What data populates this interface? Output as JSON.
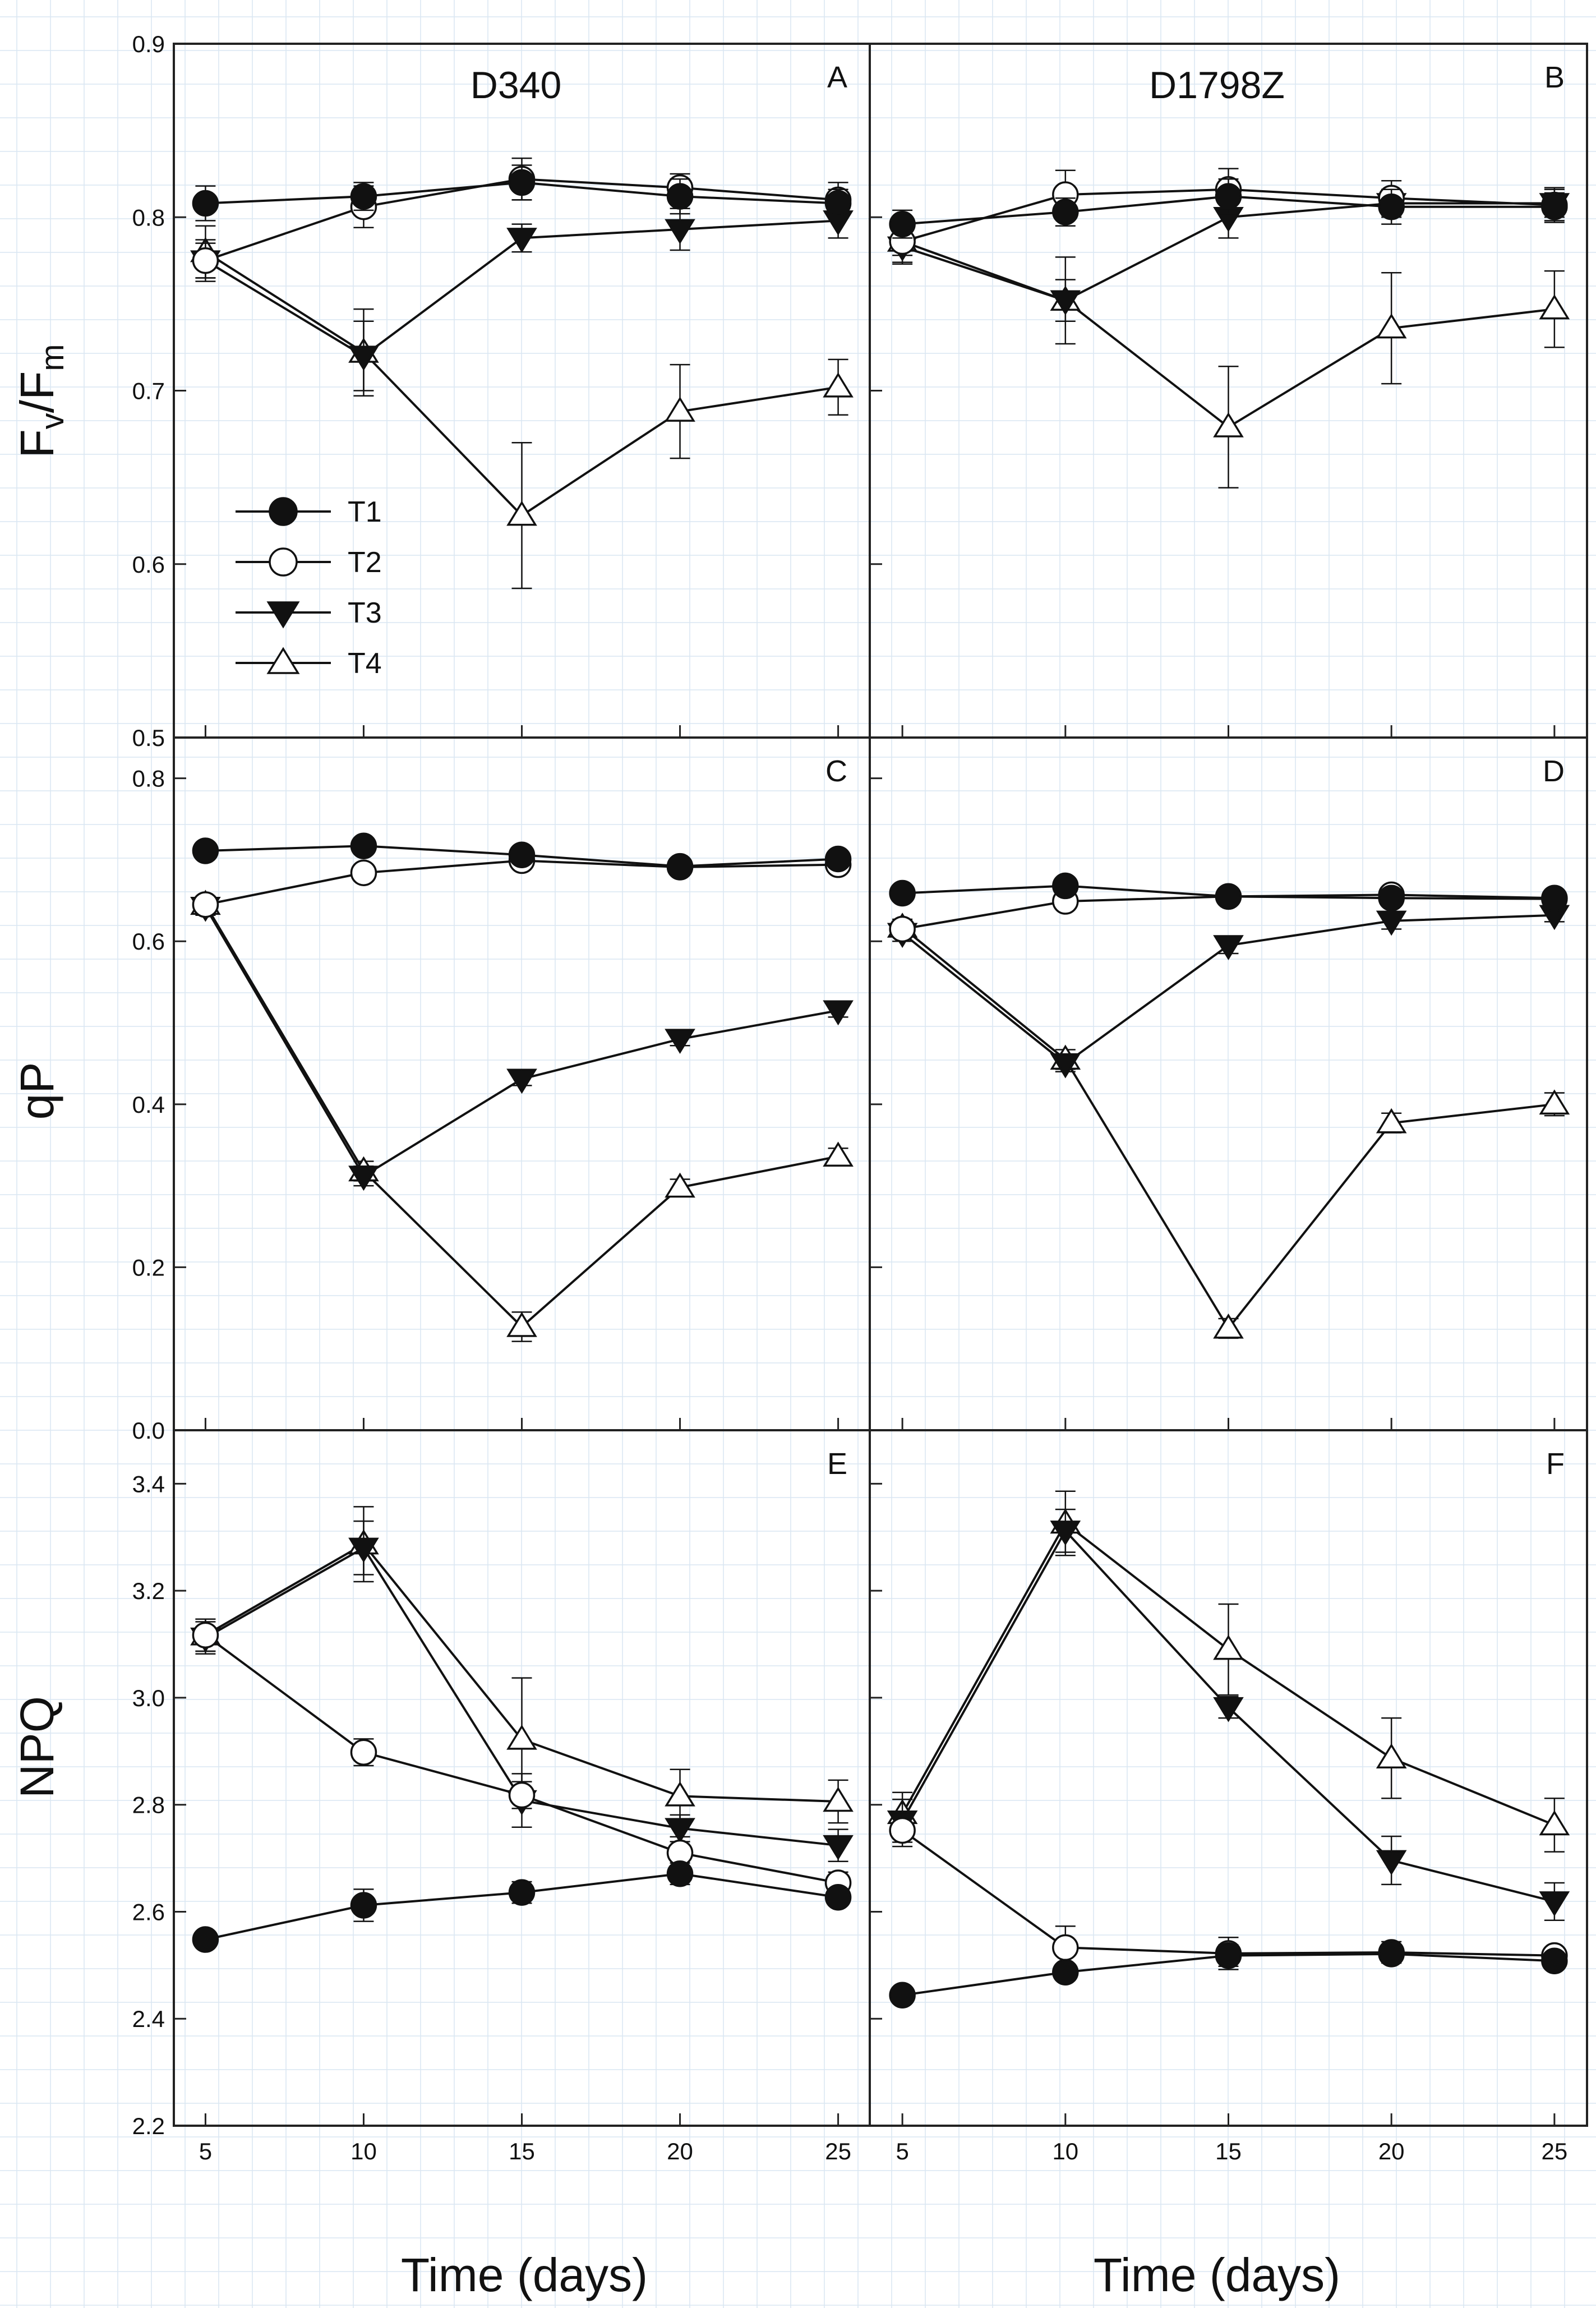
{
  "figure": {
    "xlabel": "Time (days)",
    "ylabels": {
      "fvfm_main": "F",
      "fvfm_sub_v": "v",
      "fvfm_slash": "/F",
      "fvfm_sub_m": "m",
      "qp": "qP",
      "npq": "NPQ"
    },
    "column_titles": [
      "D340",
      "D1798Z"
    ]
  },
  "legend": [
    {
      "name": "T1",
      "marker": "circle",
      "filled": true
    },
    {
      "name": "T2",
      "marker": "circle",
      "filled": false
    },
    {
      "name": "T3",
      "marker": "triangle-down",
      "filled": true
    },
    {
      "name": "T4",
      "marker": "triangle-up",
      "filled": false
    }
  ],
  "colors": {
    "line": "#111111",
    "grid": "#d9e6f2",
    "background": "#ffffff"
  },
  "chart_data": [
    {
      "panel": "A",
      "title": "D340",
      "type": "line",
      "ylabel": "Fv/Fm",
      "x": [
        5,
        10,
        15,
        20,
        25
      ],
      "xlim": [
        4,
        26
      ],
      "ylim": [
        0.5,
        0.9
      ],
      "yticks": [
        "0.5",
        "0.6",
        "0.7",
        "0.8",
        "0.9"
      ],
      "series": [
        {
          "name": "T1",
          "values": [
            0.808,
            0.812,
            0.82,
            0.812,
            0.808
          ],
          "errors": [
            0.01,
            0.008,
            0.01,
            0.01,
            0.008
          ]
        },
        {
          "name": "T2",
          "values": [
            0.775,
            0.806,
            0.822,
            0.817,
            0.81
          ],
          "errors": [
            0.01,
            0.012,
            0.012,
            0.008,
            0.01
          ]
        },
        {
          "name": "T3",
          "values": [
            0.775,
            0.72,
            0.788,
            0.793,
            0.798
          ],
          "errors": [
            0.012,
            0.02,
            0.008,
            0.012,
            0.01
          ]
        },
        {
          "name": "T4",
          "values": [
            0.78,
            0.722,
            0.628,
            0.688,
            0.702
          ],
          "errors": [
            0.015,
            0.025,
            0.042,
            0.027,
            0.016
          ]
        }
      ]
    },
    {
      "panel": "B",
      "title": "D1798Z",
      "type": "line",
      "ylabel": "Fv/Fm",
      "x": [
        5,
        10,
        15,
        20,
        25
      ],
      "xlim": [
        4,
        26
      ],
      "ylim": [
        0.5,
        0.9
      ],
      "yticks": [
        "0.5",
        "0.6",
        "0.7",
        "0.8",
        "0.9"
      ],
      "series": [
        {
          "name": "T1",
          "values": [
            0.796,
            0.803,
            0.812,
            0.806,
            0.806
          ],
          "errors": [
            0.008,
            0.008,
            0.01,
            0.01,
            0.008
          ]
        },
        {
          "name": "T2",
          "values": [
            0.786,
            0.813,
            0.816,
            0.811,
            0.807
          ],
          "errors": [
            0.008,
            0.014,
            0.012,
            0.01,
            0.01
          ]
        },
        {
          "name": "T3",
          "values": [
            0.783,
            0.752,
            0.8,
            0.808,
            0.808
          ],
          "errors": [
            0.01,
            0.012,
            0.012,
            0.008,
            0.008
          ]
        },
        {
          "name": "T4",
          "values": [
            0.786,
            0.752,
            0.679,
            0.736,
            0.747
          ],
          "errors": [
            0.012,
            0.025,
            0.035,
            0.032,
            0.022
          ]
        }
      ]
    },
    {
      "panel": "C",
      "title": "",
      "type": "line",
      "ylabel": "qP",
      "x": [
        5,
        10,
        15,
        20,
        25
      ],
      "xlim": [
        4,
        26
      ],
      "ylim": [
        0.0,
        0.85
      ],
      "yticks": [
        "0.0",
        "0.2",
        "0.4",
        "0.6",
        "0.8"
      ],
      "series": [
        {
          "name": "T1",
          "values": [
            0.711,
            0.717,
            0.706,
            0.692,
            0.701
          ],
          "errors": [
            0.008,
            0.008,
            0.008,
            0.008,
            0.008
          ]
        },
        {
          "name": "T2",
          "values": [
            0.645,
            0.684,
            0.699,
            0.691,
            0.694
          ],
          "errors": [
            0.008,
            0.01,
            0.008,
            0.008,
            0.008
          ]
        },
        {
          "name": "T3",
          "values": [
            0.642,
            0.312,
            0.431,
            0.48,
            0.515
          ],
          "errors": [
            0.01,
            0.012,
            0.008,
            0.008,
            0.008
          ]
        },
        {
          "name": "T4",
          "values": [
            0.645,
            0.318,
            0.127,
            0.298,
            0.336
          ],
          "errors": [
            0.01,
            0.012,
            0.018,
            0.01,
            0.01
          ]
        }
      ]
    },
    {
      "panel": "D",
      "title": "",
      "type": "line",
      "ylabel": "qP",
      "x": [
        5,
        10,
        15,
        20,
        25
      ],
      "xlim": [
        4,
        26
      ],
      "ylim": [
        0.0,
        0.85
      ],
      "yticks": [
        "0.0",
        "0.2",
        "0.4",
        "0.6",
        "0.8"
      ],
      "series": [
        {
          "name": "T1",
          "values": [
            0.659,
            0.668,
            0.655,
            0.653,
            0.652
          ],
          "errors": [
            0.008,
            0.008,
            0.008,
            0.008,
            0.008
          ]
        },
        {
          "name": "T2",
          "values": [
            0.615,
            0.649,
            0.655,
            0.657,
            0.653
          ],
          "errors": [
            0.008,
            0.008,
            0.008,
            0.008,
            0.008
          ]
        },
        {
          "name": "T3",
          "values": [
            0.61,
            0.45,
            0.595,
            0.625,
            0.632
          ],
          "errors": [
            0.01,
            0.01,
            0.01,
            0.01,
            0.008
          ]
        },
        {
          "name": "T4",
          "values": [
            0.617,
            0.455,
            0.125,
            0.377,
            0.4
          ],
          "errors": [
            0.01,
            0.012,
            0.012,
            0.012,
            0.014
          ]
        }
      ]
    },
    {
      "panel": "E",
      "title": "",
      "type": "line",
      "ylabel": "NPQ",
      "x": [
        5,
        10,
        15,
        20,
        25
      ],
      "xlim": [
        4,
        26
      ],
      "ylim": [
        2.2,
        3.5
      ],
      "yticks": [
        "2.2",
        "2.4",
        "2.6",
        "2.8",
        "3.0",
        "3.2",
        "3.4"
      ],
      "series": [
        {
          "name": "T1",
          "values": [
            2.548,
            2.612,
            2.636,
            2.671,
            2.627
          ],
          "errors": [
            0.015,
            0.03,
            0.02,
            0.02,
            0.015
          ]
        },
        {
          "name": "T2",
          "values": [
            3.117,
            2.898,
            2.818,
            2.71,
            2.654
          ],
          "errors": [
            0.03,
            0.025,
            0.025,
            0.03,
            0.02
          ]
        },
        {
          "name": "T3",
          "values": [
            3.112,
            3.28,
            2.808,
            2.756,
            2.724
          ],
          "errors": [
            0.03,
            0.05,
            0.05,
            0.025,
            0.03
          ]
        },
        {
          "name": "T4",
          "values": [
            3.117,
            3.287,
            2.922,
            2.816,
            2.806
          ],
          "errors": [
            0.03,
            0.07,
            0.115,
            0.05,
            0.04
          ]
        }
      ]
    },
    {
      "panel": "F",
      "title": "",
      "type": "line",
      "ylabel": "NPQ",
      "x": [
        5,
        10,
        15,
        20,
        25
      ],
      "xlim": [
        4,
        26
      ],
      "ylim": [
        2.2,
        3.5
      ],
      "yticks": [
        "2.2",
        "2.4",
        "2.6",
        "2.8",
        "3.0",
        "3.2",
        "3.4"
      ],
      "series": [
        {
          "name": "T1",
          "values": [
            2.444,
            2.487,
            2.518,
            2.521,
            2.508
          ],
          "errors": [
            0.01,
            0.015,
            0.02,
            0.015,
            0.015
          ]
        },
        {
          "name": "T2",
          "values": [
            2.752,
            2.533,
            2.522,
            2.524,
            2.518
          ],
          "errors": [
            0.03,
            0.04,
            0.03,
            0.02,
            0.015
          ]
        },
        {
          "name": "T3",
          "values": [
            2.77,
            3.312,
            2.982,
            2.696,
            2.619
          ],
          "errors": [
            0.04,
            0.04,
            0.02,
            0.045,
            0.035
          ]
        },
        {
          "name": "T4",
          "values": [
            2.783,
            3.326,
            3.09,
            2.887,
            2.762
          ],
          "errors": [
            0.04,
            0.06,
            0.085,
            0.075,
            0.05
          ]
        }
      ]
    }
  ]
}
